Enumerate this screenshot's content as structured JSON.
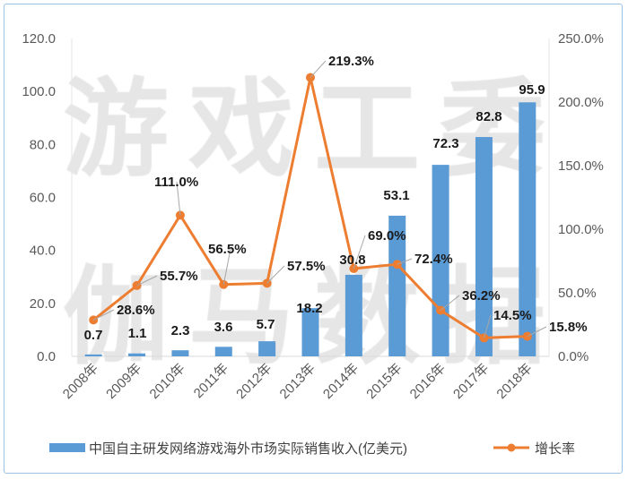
{
  "watermark": [
    "游戏工委",
    "伽马数据"
  ],
  "chart_data": {
    "type": "bar+line",
    "categories": [
      "2008年",
      "2009年",
      "2010年",
      "2011年",
      "2012年",
      "2013年",
      "2014年",
      "2015年",
      "2016年",
      "2017年",
      "2018年"
    ],
    "series": [
      {
        "name": "中国自主研发网络游戏海外市场实际销售收入(亿美元)",
        "type": "bar",
        "axis": "left",
        "color": "#5b9bd5",
        "values": [
          0.7,
          1.1,
          2.3,
          3.6,
          5.7,
          18.2,
          30.8,
          53.1,
          72.3,
          82.8,
          95.9
        ],
        "labels": [
          "0.7",
          "1.1",
          "2.3",
          "3.6",
          "5.7",
          "18.2",
          "30.8",
          "53.1",
          "72.3",
          "82.8",
          "95.9"
        ]
      },
      {
        "name": "增长率",
        "type": "line",
        "axis": "right",
        "color": "#ed7d31",
        "values": [
          28.6,
          55.7,
          111.0,
          56.5,
          57.5,
          219.3,
          69.0,
          72.4,
          36.2,
          14.5,
          15.8
        ],
        "labels": [
          "28.6%",
          "55.7%",
          "111.0%",
          "56.5%",
          "57.5%",
          "219.3%",
          "69.0%",
          "72.4%",
          "36.2%",
          "14.5%",
          "15.8%"
        ]
      }
    ],
    "y_left": {
      "range": [
        0,
        120
      ],
      "ticks": [
        "0.0",
        "20.0",
        "40.0",
        "60.0",
        "80.0",
        "100.0",
        "120.0"
      ]
    },
    "y_right": {
      "range": [
        0,
        250
      ],
      "ticks": [
        "0.0%",
        "50.0%",
        "100.0%",
        "150.0%",
        "200.0%",
        "250.0%"
      ]
    },
    "legend": "bottom",
    "grid": false
  }
}
